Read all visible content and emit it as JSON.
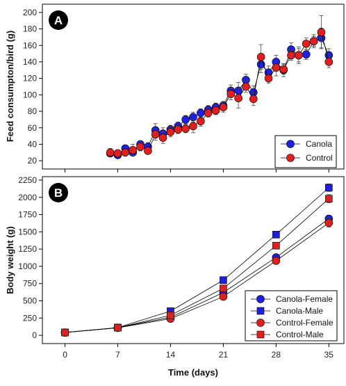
{
  "chart_data": [
    {
      "panel_label": "A",
      "type": "line",
      "ylabel": "Feed consumpton/bird (g)",
      "ylim": [
        10,
        210
      ],
      "yticks": [
        20,
        40,
        60,
        80,
        100,
        120,
        140,
        160,
        180,
        200
      ],
      "xlim": [
        -3,
        37
      ],
      "grid": false,
      "legend_position": "bottom-right",
      "series": [
        {
          "name": "Canola",
          "marker": "circle",
          "color": "#1f1fe0",
          "x": [
            6,
            7,
            8,
            9,
            10,
            11,
            12,
            13,
            14,
            15,
            16,
            17,
            18,
            19,
            20,
            21,
            22,
            23,
            24,
            25,
            26,
            27,
            28,
            29,
            30,
            31,
            32,
            33,
            34,
            35
          ],
          "y": [
            29,
            27,
            35,
            30,
            40,
            37,
            57,
            53,
            58,
            62,
            70,
            73,
            78,
            82,
            85,
            87,
            105,
            105,
            118,
            103,
            137,
            127,
            140,
            130,
            155,
            148,
            149,
            165,
            169,
            148
          ],
          "err": [
            4,
            3,
            4,
            4,
            4,
            5,
            8,
            7,
            5,
            5,
            5,
            6,
            5,
            5,
            5,
            5,
            7,
            10,
            7,
            8,
            10,
            8,
            8,
            8,
            8,
            10,
            6,
            8,
            12,
            8
          ]
        },
        {
          "name": "Control",
          "marker": "circle",
          "color": "#e01f1f",
          "x": [
            6,
            7,
            8,
            9,
            10,
            11,
            12,
            13,
            14,
            15,
            16,
            17,
            18,
            19,
            20,
            21,
            22,
            23,
            24,
            25,
            26,
            27,
            28,
            29,
            30,
            31,
            32,
            33,
            34,
            35
          ],
          "y": [
            30,
            29,
            30,
            33,
            37,
            32,
            52,
            48,
            55,
            58,
            59,
            62,
            68,
            78,
            81,
            85,
            101,
            96,
            110,
            95,
            146,
            120,
            133,
            131,
            148,
            148,
            162,
            165,
            176,
            140
          ],
          "err": [
            5,
            4,
            4,
            7,
            5,
            4,
            7,
            7,
            6,
            5,
            5,
            8,
            6,
            5,
            5,
            6,
            7,
            12,
            7,
            8,
            15,
            6,
            10,
            6,
            6,
            8,
            7,
            6,
            20,
            7
          ]
        }
      ]
    },
    {
      "panel_label": "B",
      "type": "line",
      "xlabel": "Time (days)",
      "ylabel": "Body weight (g)",
      "ylim": [
        -120,
        2300
      ],
      "yticks": [
        0,
        250,
        500,
        750,
        1000,
        1250,
        1500,
        1750,
        2000,
        2250
      ],
      "xlim": [
        -3,
        37
      ],
      "xticks": [
        0,
        7,
        14,
        21,
        28,
        35
      ],
      "grid": false,
      "legend_position": "bottom-right",
      "series": [
        {
          "name": "Canola-Female",
          "marker": "circle",
          "color": "#1f1fe0",
          "x": [
            0,
            7,
            14,
            21,
            28,
            35
          ],
          "y": [
            40,
            110,
            260,
            620,
            1130,
            1690
          ],
          "err": [
            10,
            15,
            20,
            30,
            40,
            50
          ]
        },
        {
          "name": "Canola-Male",
          "marker": "square",
          "color": "#1f1fe0",
          "x": [
            0,
            7,
            14,
            21,
            28,
            35
          ],
          "y": [
            42,
            112,
            350,
            800,
            1460,
            2140
          ],
          "err": [
            10,
            15,
            20,
            30,
            40,
            55
          ]
        },
        {
          "name": "Control-Female",
          "marker": "circle",
          "color": "#e01f1f",
          "x": [
            0,
            7,
            14,
            21,
            28,
            35
          ],
          "y": [
            40,
            108,
            240,
            560,
            1080,
            1630
          ],
          "err": [
            10,
            15,
            20,
            30,
            40,
            60
          ]
        },
        {
          "name": "Control-Male",
          "marker": "square",
          "color": "#e01f1f",
          "x": [
            0,
            7,
            14,
            21,
            28,
            35
          ],
          "y": [
            41,
            110,
            290,
            680,
            1300,
            1980
          ],
          "err": [
            10,
            15,
            20,
            30,
            40,
            60
          ]
        }
      ]
    }
  ]
}
